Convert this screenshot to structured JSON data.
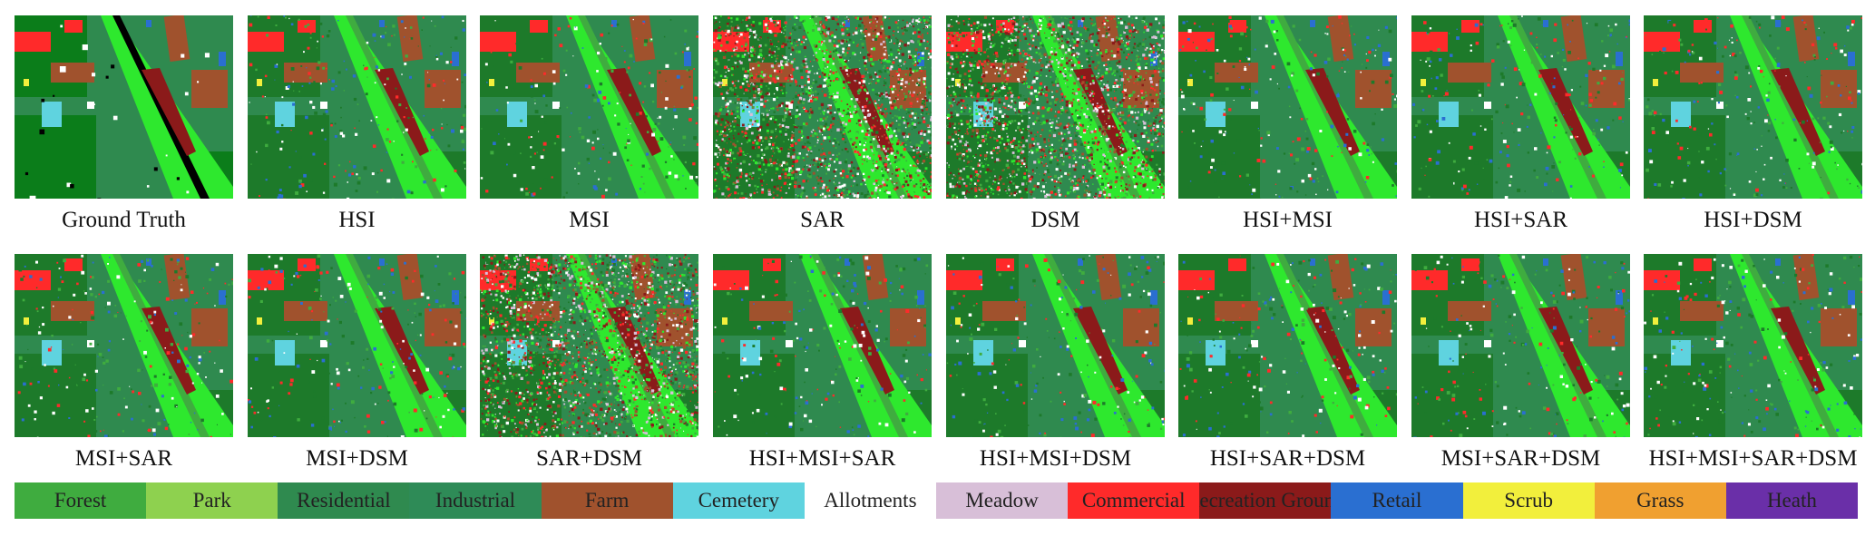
{
  "panels": [
    {
      "caption": "Ground Truth",
      "kind": "gt"
    },
    {
      "caption": "HSI",
      "kind": "pred"
    },
    {
      "caption": "MSI",
      "kind": "pred"
    },
    {
      "caption": "SAR",
      "kind": "noisy"
    },
    {
      "caption": "DSM",
      "kind": "noisy"
    },
    {
      "caption": "HSI+MSI",
      "kind": "pred"
    },
    {
      "caption": "HSI+SAR",
      "kind": "pred"
    },
    {
      "caption": "HSI+DSM",
      "kind": "pred"
    },
    {
      "caption": "MSI+SAR",
      "kind": "pred"
    },
    {
      "caption": "MSI+DSM",
      "kind": "pred"
    },
    {
      "caption": "SAR+DSM",
      "kind": "noisy"
    },
    {
      "caption": "HSI+MSI+SAR",
      "kind": "pred"
    },
    {
      "caption": "HSI+MSI+DSM",
      "kind": "pred"
    },
    {
      "caption": "HSI+SAR+DSM",
      "kind": "pred"
    },
    {
      "caption": "MSI+SAR+DSM",
      "kind": "pred"
    },
    {
      "caption": "HSI+MSI+SAR+DSM",
      "kind": "pred"
    }
  ],
  "legend": [
    {
      "label": "Forest",
      "color": "#3fac3f"
    },
    {
      "label": "Park",
      "color": "#8ed14f"
    },
    {
      "label": "Residential",
      "color": "#2f8a4f"
    },
    {
      "label": "Industrial",
      "color": "#2e8b57"
    },
    {
      "label": "Farm",
      "color": "#a0522d"
    },
    {
      "label": "Cemetery",
      "color": "#5fd3df"
    },
    {
      "label": "Allotments",
      "color": "#ffffff"
    },
    {
      "label": "Meadow",
      "color": "#d8bfd8"
    },
    {
      "label": "Commercial",
      "color": "#ff2a2a"
    },
    {
      "label": "Recreation Ground",
      "color": "#8b1a1a"
    },
    {
      "label": "Retail",
      "color": "#2a6fd1"
    },
    {
      "label": "Scrub",
      "color": "#f2ef3c"
    },
    {
      "label": "Grass",
      "color": "#f0a030"
    },
    {
      "label": "Heath",
      "color": "#6a2fa8"
    }
  ]
}
